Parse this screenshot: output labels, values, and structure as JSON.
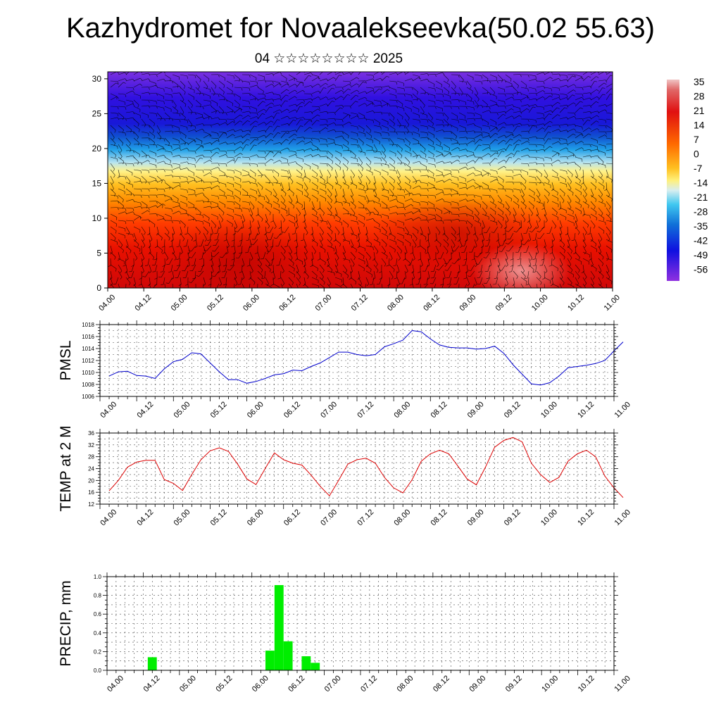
{
  "header": {
    "title": "Kazhydromet for Novaalekseevka(50.02 55.63)",
    "subtitle": "04 ☆☆☆☆☆☆☆☆ 2025"
  },
  "colors": {
    "pmsl_line": "#0000cc",
    "temp_line": "#dd0000",
    "precip_bar": "#00ee00",
    "wind_barb": "#000000"
  },
  "time_ticks": [
    "04.00",
    "04.12",
    "05.00",
    "05.12",
    "06.00",
    "06.12",
    "07.00",
    "07.12",
    "08.00",
    "08.12",
    "09.00",
    "09.12",
    "10.00",
    "10.12",
    "11.00"
  ],
  "chart_data": [
    {
      "type": "heatmap",
      "name": "temperature-cross-section",
      "x_range": [
        0,
        7
      ],
      "ylim": [
        0,
        31
      ],
      "yticks": [
        0,
        5,
        10,
        15,
        20,
        25,
        30
      ],
      "colorbar_labels": [
        "35",
        "28",
        "21",
        "14",
        "7",
        "0",
        "-7",
        "-14",
        "-21",
        "-28",
        "-35",
        "-42",
        "-49",
        "-56"
      ],
      "colorbar_range": [
        -60,
        38
      ],
      "overlay": "wind barbs"
    },
    {
      "type": "line",
      "ylabel": "PMSL",
      "ylim": [
        1006,
        1018
      ],
      "yticks": [
        1006,
        1008,
        1010,
        1012,
        1014,
        1016,
        1018
      ],
      "x": [
        0.125,
        0.25,
        0.375,
        0.5,
        0.625,
        0.75,
        0.875,
        1.0,
        1.125,
        1.25,
        1.375,
        1.5,
        1.625,
        1.75,
        1.875,
        2.0,
        2.125,
        2.25,
        2.375,
        2.5,
        2.625,
        2.75,
        2.875,
        3.0,
        3.125,
        3.25,
        3.375,
        3.5,
        3.625,
        3.75,
        3.875,
        4.0,
        4.125,
        4.25,
        4.375,
        4.5,
        4.625,
        4.75,
        4.875,
        5.0,
        5.125,
        5.25,
        5.375,
        5.5,
        5.625,
        5.75,
        5.875,
        6.0,
        6.125,
        6.25,
        6.375,
        6.5,
        6.625,
        6.75
      ],
      "values": [
        1009.4,
        1010.1,
        1010.2,
        1009.5,
        1009.4,
        1009.0,
        1010.6,
        1011.8,
        1012.2,
        1013.3,
        1013.1,
        1011.6,
        1010.1,
        1008.8,
        1008.8,
        1008.2,
        1008.5,
        1009.0,
        1009.6,
        1009.8,
        1010.4,
        1010.3,
        1011.0,
        1011.6,
        1012.5,
        1013.4,
        1013.4,
        1013.0,
        1012.8,
        1013.0,
        1014.3,
        1014.8,
        1015.4,
        1017.0,
        1016.8,
        1015.6,
        1014.6,
        1014.2,
        1014.1,
        1014.1,
        1013.9,
        1014.0,
        1014.4,
        1013.2,
        1011.3,
        1009.7,
        1008.1,
        1007.9,
        1008.3,
        1009.4,
        1010.8,
        1011.0,
        1011.2,
        1011.5
      ],
      "extra_x": [
        6.875,
        7.0,
        7.125
      ],
      "extra_values": [
        1012.0,
        1013.6,
        1015.1
      ]
    },
    {
      "type": "line",
      "ylabel": "TEMP at 2 M",
      "ylim": [
        12,
        36
      ],
      "yticks": [
        12,
        16,
        20,
        24,
        28,
        32,
        36
      ],
      "x": [
        0.125,
        0.25,
        0.375,
        0.5,
        0.625,
        0.75,
        0.875,
        1.0,
        1.125,
        1.25,
        1.375,
        1.5,
        1.625,
        1.75,
        1.875,
        2.0,
        2.125,
        2.25,
        2.375,
        2.5,
        2.625,
        2.75,
        2.875,
        3.0,
        3.125,
        3.25,
        3.375,
        3.5,
        3.625,
        3.75,
        3.875,
        4.0,
        4.125,
        4.25,
        4.375,
        4.5,
        4.625,
        4.75,
        4.875,
        5.0,
        5.125,
        5.25,
        5.375,
        5.5,
        5.625,
        5.75,
        5.875,
        6.0,
        6.125,
        6.25,
        6.375,
        6.5,
        6.625,
        6.75,
        6.875,
        7.0,
        7.125
      ],
      "values": [
        16.5,
        20.0,
        24.5,
        26.2,
        26.8,
        26.8,
        20.3,
        19.0,
        16.6,
        22.0,
        27.0,
        30.0,
        31.0,
        29.8,
        25.5,
        20.5,
        18.6,
        24.0,
        29.3,
        27.0,
        25.8,
        25.2,
        21.8,
        18.0,
        14.8,
        20.0,
        25.5,
        27.0,
        27.5,
        25.8,
        21.0,
        17.5,
        15.8,
        20.2,
        26.5,
        29.0,
        30.2,
        29.0,
        24.8,
        20.5,
        18.5,
        24.5,
        31.2,
        33.5,
        34.5,
        33.0,
        25.8,
        22.0,
        19.3,
        21.0,
        26.5,
        29.0,
        30.2,
        28.0,
        21.5,
        17.5,
        14.2
      ]
    },
    {
      "type": "bar",
      "ylabel": "PRECIP, mm",
      "ylim": [
        0,
        1.0
      ],
      "yticks": [
        "0.0",
        "0.2",
        "0.4",
        "0.6",
        "0.8",
        "1.0"
      ],
      "x": [
        0.5,
        0.625,
        0.75,
        2.25,
        2.375,
        2.5,
        2.625,
        2.75,
        2.875,
        3.0,
        3.125,
        3.25
      ],
      "values": [
        0,
        0.14,
        0,
        0.21,
        0.91,
        0.31,
        0,
        0.15,
        0.08,
        0,
        0,
        0
      ]
    }
  ]
}
